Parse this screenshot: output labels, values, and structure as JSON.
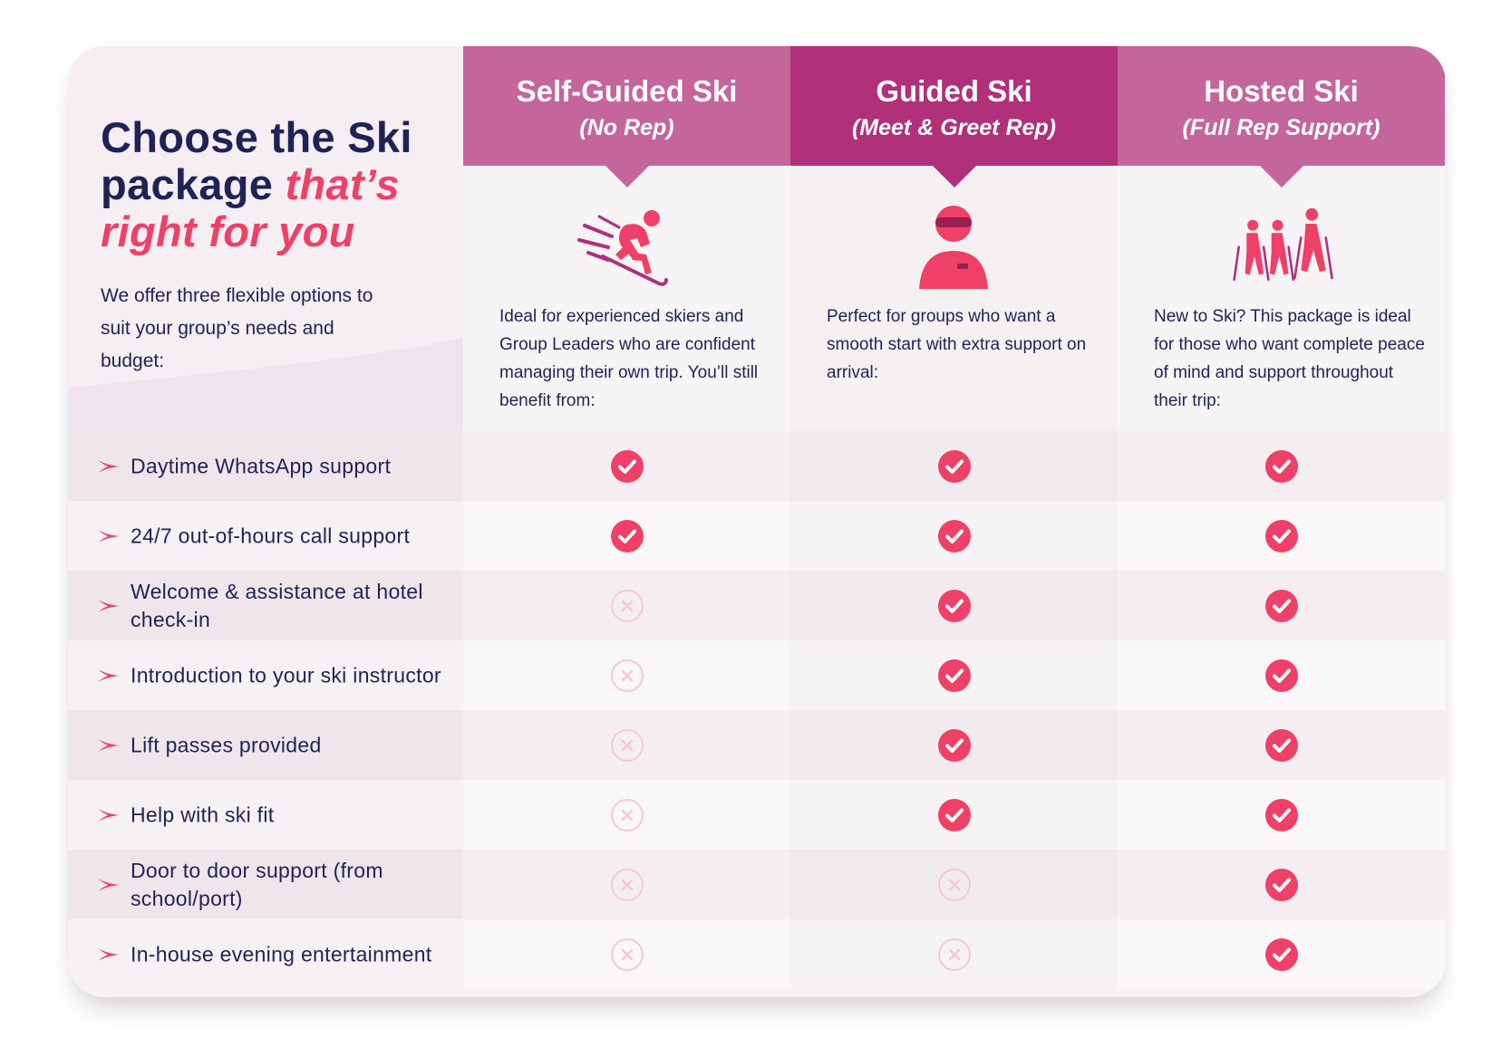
{
  "intro": {
    "title_line1": "Choose the Ski",
    "title_line2a": "package ",
    "title_line2b": "that’s",
    "title_line3": "right for you",
    "text": "We offer three flexible options to suit your group’s needs and budget:"
  },
  "colors": {
    "navy": "#1f2257",
    "accent_pink": "#ef4068",
    "header_light": "#c4659b",
    "header_dark": "#b0307a"
  },
  "packages": [
    {
      "name": "Self-Guided Ski",
      "sub": "(No Rep)",
      "icon": "skier-icon",
      "desc": "Ideal for experienced skiers and Group Leaders who are confident managing their own trip. You’ll still benefit from:"
    },
    {
      "name": "Guided Ski",
      "sub": "(Meet & Greet Rep)",
      "icon": "rep-with-goggles-icon",
      "desc": "Perfect for groups who want a smooth start with extra support on arrival:"
    },
    {
      "name": "Hosted Ski",
      "sub": "(Full Rep Support)",
      "icon": "group-hiking-icon",
      "desc": "New to Ski? This package is ideal for those who want complete peace of mind and support throughout their trip:"
    }
  ],
  "features": [
    {
      "label": "Daytime WhatsApp support",
      "included": [
        true,
        true,
        true
      ]
    },
    {
      "label": "24/7 out-of-hours call support",
      "included": [
        true,
        true,
        true
      ]
    },
    {
      "label": "Welcome & assistance at hotel check-in",
      "included": [
        false,
        true,
        true
      ]
    },
    {
      "label": "Introduction to your ski instructor",
      "included": [
        false,
        true,
        true
      ]
    },
    {
      "label": "Lift passes provided",
      "included": [
        false,
        true,
        true
      ]
    },
    {
      "label": "Help with ski fit",
      "included": [
        false,
        true,
        true
      ]
    },
    {
      "label": "Door to door support (from school/port)",
      "included": [
        false,
        false,
        true
      ]
    },
    {
      "label": "In-house evening entertainment",
      "included": [
        false,
        false,
        true
      ]
    }
  ]
}
